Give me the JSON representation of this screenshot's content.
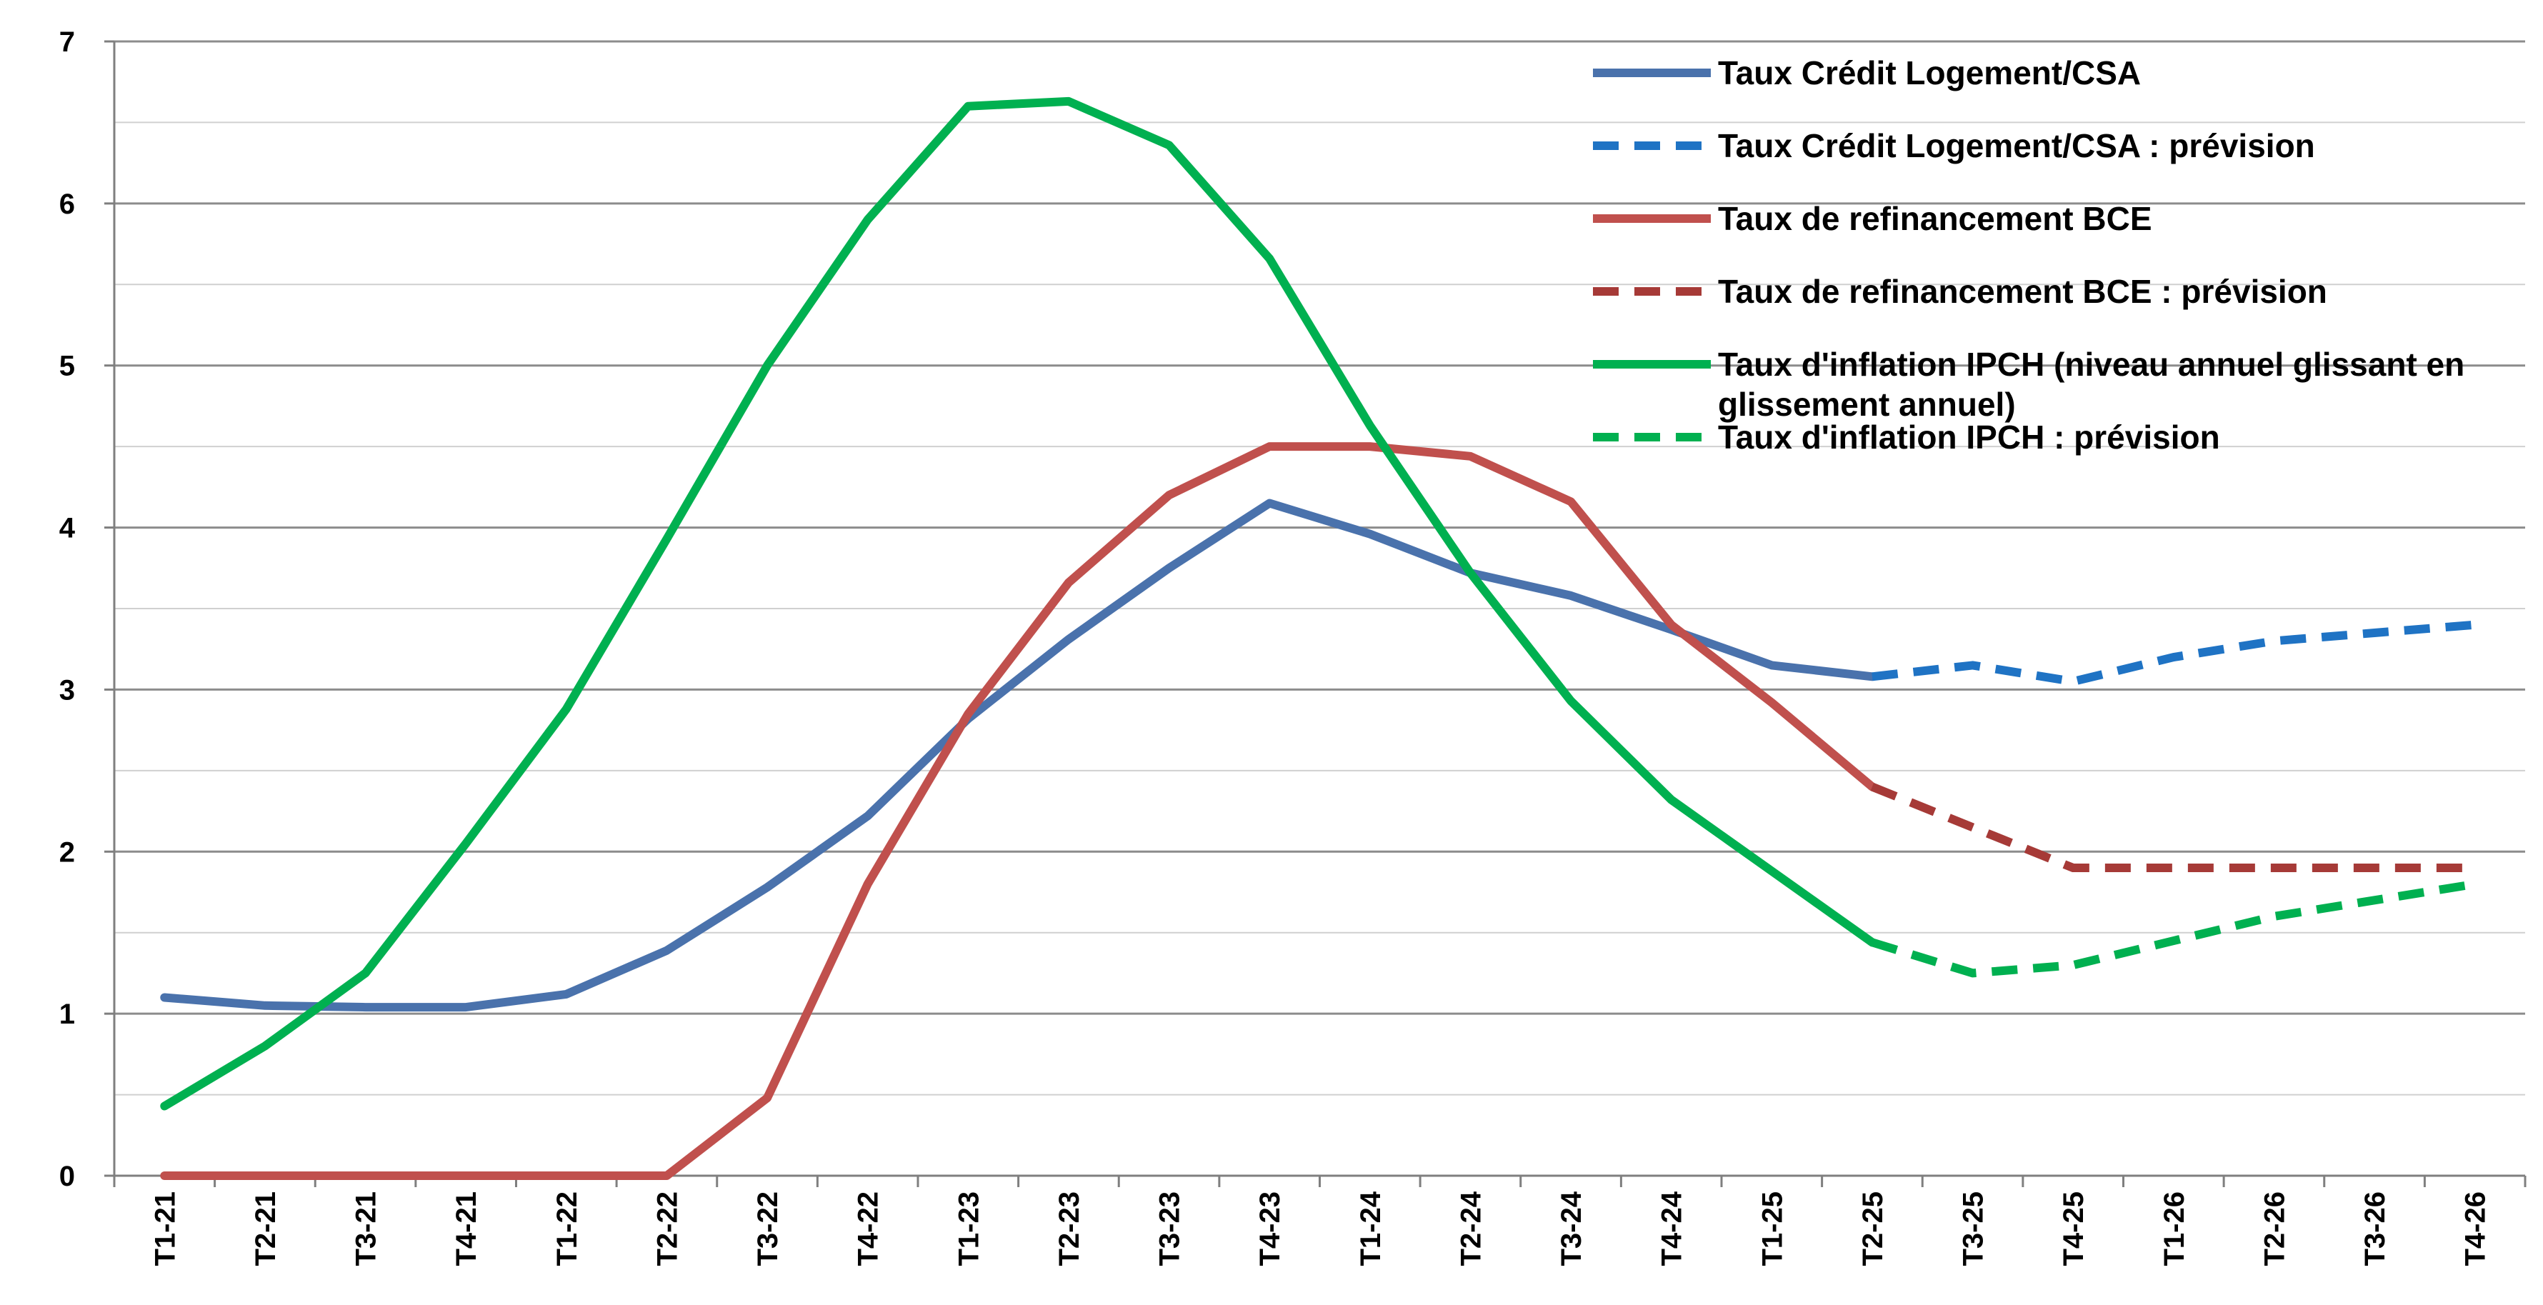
{
  "chart_data": {
    "type": "line",
    "title": "",
    "xlabel": "",
    "ylabel": "",
    "ylim": [
      0,
      7
    ],
    "yticks": [
      0,
      1,
      2,
      3,
      4,
      5,
      6,
      7
    ],
    "grid": "horizontal (major and minor)",
    "legend_position": "top-right",
    "categories": [
      "T1-21",
      "T2-21",
      "T3-21",
      "T4-21",
      "T1-22",
      "T2-22",
      "T3-22",
      "T4-22",
      "T1-23",
      "T2-23",
      "T3-23",
      "T4-23",
      "T1-24",
      "T2-24",
      "T3-24",
      "T4-24",
      "T1-25",
      "T2-25",
      "T3-25",
      "T4-25",
      "T1-26",
      "T2-26",
      "T3-26",
      "T4-26"
    ],
    "series": [
      {
        "name": "Taux Crédit Logement/CSA",
        "color": "#4A72AC",
        "dash": false,
        "values": [
          1.1,
          1.05,
          1.04,
          1.04,
          1.12,
          1.39,
          1.78,
          2.22,
          2.82,
          3.31,
          3.75,
          4.15,
          3.96,
          3.72,
          3.58,
          3.37,
          3.15,
          3.08,
          null,
          null,
          null,
          null,
          null,
          null
        ]
      },
      {
        "name": "Taux Crédit Logement/CSA : prévision",
        "color": "#1F73C4",
        "dash": true,
        "values": [
          null,
          null,
          null,
          null,
          null,
          null,
          null,
          null,
          null,
          null,
          null,
          null,
          null,
          null,
          null,
          null,
          null,
          3.08,
          3.15,
          3.05,
          3.2,
          3.3,
          3.35,
          3.4
        ]
      },
      {
        "name": "Taux de refinancement BCE",
        "color": "#C0504D",
        "dash": false,
        "values": [
          0,
          0,
          0,
          0,
          0,
          0,
          0.48,
          1.8,
          2.85,
          3.66,
          4.2,
          4.5,
          4.5,
          4.44,
          4.16,
          3.4,
          2.92,
          2.4,
          null,
          null,
          null,
          null,
          null,
          null
        ]
      },
      {
        "name": "Taux de refinancement BCE : prévision",
        "color": "#A63A37",
        "dash": true,
        "values": [
          null,
          null,
          null,
          null,
          null,
          null,
          null,
          null,
          null,
          null,
          null,
          null,
          null,
          null,
          null,
          null,
          null,
          2.4,
          2.15,
          1.9,
          1.9,
          1.9,
          1.9,
          1.9
        ]
      },
      {
        "name": "Taux d'inflation IPCH (niveau annuel glissant en glissement annuel)",
        "color": "#00B050",
        "dash": false,
        "values": [
          0.43,
          0.8,
          1.25,
          2.05,
          2.88,
          3.93,
          5.0,
          5.9,
          6.6,
          6.63,
          6.36,
          5.66,
          4.63,
          3.72,
          2.93,
          2.32,
          1.88,
          1.44,
          null,
          null,
          null,
          null,
          null,
          null
        ]
      },
      {
        "name": "Taux d'inflation IPCH : prévision",
        "color": "#00B050",
        "dash": true,
        "values": [
          null,
          null,
          null,
          null,
          null,
          null,
          null,
          null,
          null,
          null,
          null,
          null,
          null,
          null,
          null,
          null,
          null,
          1.44,
          1.25,
          1.3,
          1.45,
          1.6,
          1.7,
          1.8
        ]
      }
    ],
    "legend": [
      {
        "lines": [
          "Taux Crédit Logement/CSA"
        ],
        "color": "#4A72AC",
        "dash": false
      },
      {
        "lines": [
          "Taux Crédit Logement/CSA : prévision"
        ],
        "color": "#1F73C4",
        "dash": true
      },
      {
        "lines": [
          "Taux de refinancement BCE"
        ],
        "color": "#C0504D",
        "dash": false
      },
      {
        "lines": [
          "Taux de refinancement BCE : prévision"
        ],
        "color": "#A63A37",
        "dash": true
      },
      {
        "lines": [
          "Taux d'inflation IPCH (niveau annuel glissant en",
          "glissement annuel)"
        ],
        "color": "#00B050",
        "dash": false
      },
      {
        "lines": [
          "Taux d'inflation IPCH : prévision"
        ],
        "color": "#00B050",
        "dash": true
      }
    ]
  }
}
